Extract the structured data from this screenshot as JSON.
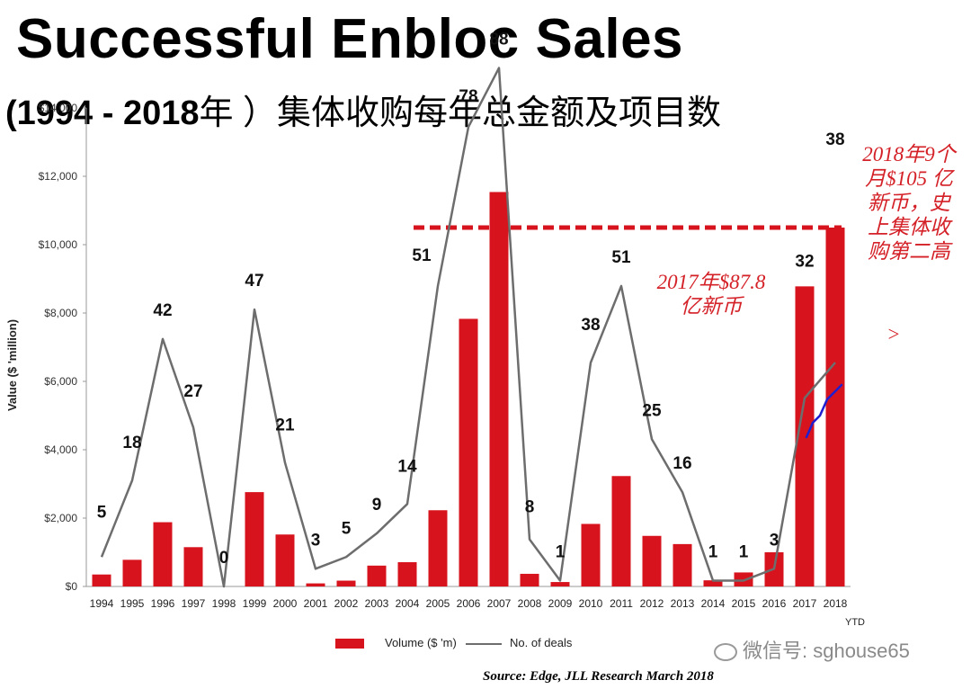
{
  "title": "Successful Enbloc Sales",
  "subtitle_years": "(1994 - 2018",
  "subtitle_cn": "年 ）集体收购每年总金额及项目数",
  "annotation_2017": [
    "2017年$87.8",
    "亿新币"
  ],
  "annotation_2018": [
    "2018年9个",
    "月$105 亿",
    "新币，史",
    "上集体收",
    "购第二高"
  ],
  "annotation_arrow": ">",
  "source": "Source: Edge, JLL Research March 2018",
  "watermark": "微信号: sghouse65",
  "colors": {
    "bar": "#d7141e",
    "line": "#6d6d6d",
    "dashed": "#d7141e",
    "trend": "#1f1fd0"
  },
  "chart_data": {
    "type": "bar",
    "ylabel": "Value ($ 'million)",
    "ylim": [
      0,
      14000
    ],
    "yticks": [
      "$0",
      "$2,000",
      "$4,000",
      "$6,000",
      "$8,000",
      "$10,000",
      "$12,000",
      "$14,000"
    ],
    "categories": [
      "1994",
      "1995",
      "1996",
      "1997",
      "1998",
      "1999",
      "2000",
      "2001",
      "2002",
      "2003",
      "2004",
      "2005",
      "2006",
      "2007",
      "2008",
      "2009",
      "2010",
      "2011",
      "2012",
      "2013",
      "2014",
      "2015",
      "2016",
      "2017",
      "2018"
    ],
    "ytd_label": "YTD",
    "series": [
      {
        "name": "Volume ($ 'm)",
        "type": "bar",
        "values": [
          350,
          780,
          1880,
          1150,
          0,
          2760,
          1520,
          90,
          170,
          610,
          710,
          2230,
          7830,
          11540,
          370,
          130,
          1830,
          3230,
          1480,
          1240,
          180,
          410,
          1000,
          8780,
          10500
        ]
      },
      {
        "name": "No. of deals",
        "type": "line",
        "values": [
          5,
          18,
          42,
          27,
          0,
          47,
          21,
          3,
          5,
          9,
          14,
          51,
          78,
          88,
          8,
          1,
          38,
          51,
          25,
          16,
          1,
          1,
          3,
          32,
          38
        ],
        "labels": [
          "5",
          "18",
          "42",
          "27",
          "0",
          "47",
          "21",
          "3",
          "5",
          "9",
          "14",
          "51",
          "78",
          "88",
          "8",
          "1",
          "38",
          "51",
          "25",
          "16",
          "1",
          "1",
          "3",
          "32",
          "38"
        ]
      }
    ],
    "reference_line_value": 10500,
    "legend": "bottom"
  }
}
